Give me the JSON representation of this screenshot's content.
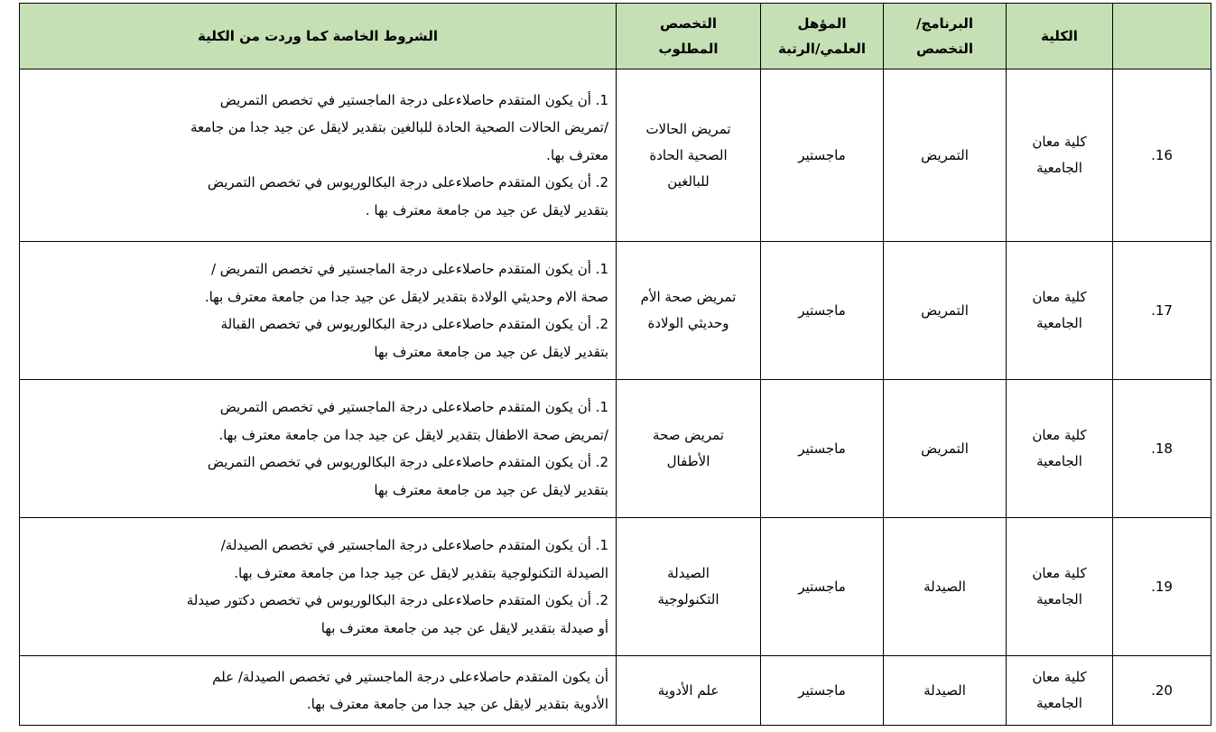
{
  "headers": {
    "num": "",
    "college": "الكلية",
    "program": [
      "البرنامج/",
      "التخصص"
    ],
    "qualification": [
      "المؤهل",
      "العلمي/الرتبة"
    ],
    "specialization": [
      "التخصص",
      "المطلوب"
    ],
    "conditions": "الشروط الخاصة كما وردت من الكلية"
  },
  "rows": [
    {
      "num": "16.",
      "college": [
        "كلية معان",
        "الجامعية"
      ],
      "program": "التمريض",
      "qualification": "ماجستير",
      "specialization": [
        "تمريض الحالات",
        "الصحية الحادة",
        "للبالغين"
      ],
      "conditions": [
        "1.  أن يكون المتقدم حاصلاءعلى درجة الماجستير  في  تخصص التمريض",
        "/تمريض الحالات الصحية الحادة للبالغين  بتقدير لايقل عن جيد جدا من جامعة",
        "معترف بها.",
        "2. أن يكون المتقدم حاصلاءعلى درجة البكالوريوس في  تخصص التمريض",
        "بتقدير لايقل عن جيد من جامعة معترف بها  ."
      ]
    },
    {
      "num": "17.",
      "college": [
        "كلية معان",
        "الجامعية"
      ],
      "program": "التمريض",
      "qualification": "ماجستير",
      "specialization": [
        "تمريض صحة الأم",
        "وحديثي الولادة"
      ],
      "conditions": [
        "1.  أن يكون المتقدم حاصلاءعلى درجة الماجستير  في  تخصص التمريض /",
        "صحة الام وحديثي الولادة بتقدير لايقل عن جيد جدا من جامعة معترف بها.",
        "2. أن يكون المتقدم حاصلاءعلى درجة البكالوريوس في  تخصص القبالة",
        "بتقدير لايقل عن جيد من جامعة معترف بها"
      ]
    },
    {
      "num": "18.",
      "college": [
        "كلية معان",
        "الجامعية"
      ],
      "program": "التمريض",
      "qualification": "ماجستير",
      "specialization": [
        "تمريض صحة",
        "الأطفال"
      ],
      "conditions": [
        "1.  أن يكون المتقدم حاصلاءعلى درجة الماجستير  في  تخصص التمريض",
        "/تمريض صحة الاطفال بتقدير لايقل عن جيد جدا من جامعة معترف بها.",
        "2. أن يكون المتقدم حاصلاءعلى درجة البكالوريوس في  تخصص التمريض",
        "بتقدير لايقل عن جيد من جامعة معترف بها"
      ]
    },
    {
      "num": "19.",
      "college": [
        "كلية معان",
        "الجامعية"
      ],
      "program": "الصيدلة",
      "qualification": "ماجستير",
      "specialization": [
        "الصيدلة",
        "التكنولوجية"
      ],
      "conditions": [
        "1.  أن يكون المتقدم حاصلاءعلى درجة الماجستير  في  تخصص الصيدلة/",
        "الصيدلة التكنولوجية بتقدير لايقل عن جيد جدا من جامعة معترف بها.",
        "2. أن يكون المتقدم حاصلاءعلى درجة البكالوريوس في  تخصص دكتور صيدلة",
        "أو صيدلة  بتقدير لايقل عن جيد من جامعة معترف بها"
      ]
    },
    {
      "num": "20.",
      "college": [
        "كلية معان",
        "الجامعية"
      ],
      "program": "الصيدلة",
      "qualification": "ماجستير",
      "specialization": [
        "علم الأدوية"
      ],
      "conditions": [
        "أن يكون المتقدم حاصلاءعلى درجة الماجستير  في  تخصص الصيدلة/ علم",
        "الأدوية بتقدير لايقل عن جيد جدا من جامعة معترف بها."
      ]
    }
  ],
  "colors": {
    "header_bg": "#c5e0b4",
    "border": "#000000"
  }
}
